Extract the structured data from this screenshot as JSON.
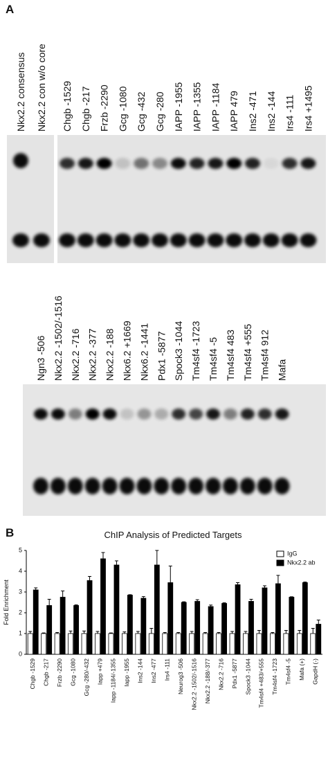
{
  "panel_a": {
    "label": "A",
    "gel_1_lanes": [
      "Nkx2.2 consensus",
      "Nkx2.2 con w/o core",
      "Chgb -1529",
      "Chgb -217",
      "Frzb -2290",
      "Gcg -1080",
      "Gcg -432",
      "Gcg -280",
      "IAPP -1955",
      "IAPP -1355",
      "IAPP -1184",
      "IAPP 479",
      "Ins2 -471",
      "Ins2 -144",
      "Irs4 -111",
      "Irs4 +1495"
    ],
    "gel_2_lanes": [
      "Ngn3 -506",
      "Nkx2.2 -1502/-1516",
      "Nkx2.2 -716",
      "Nkx2.2 -377",
      "Nkx2.2 -188",
      "Nkx6.2 +1669",
      "Nkx6.2 -1441",
      "Pdx1 -5877",
      "Spock3 -1044",
      "Tm4sf4 -1723",
      "Tm4sf4 -5",
      "Tm4sf4 483",
      "Tm4sf4 +555",
      "Tm4sf4 912",
      "Mafa"
    ]
  },
  "panel_b_label": "B",
  "chart_data": {
    "type": "bar",
    "title": "ChIP Analysis of Predicted Targets",
    "y_label": "Fold Enrichment",
    "categories": [
      "Chgb -1529",
      "Chgb -217",
      "Frzb -2290",
      "Gcg -1080",
      "Gcg -280/-432",
      "Iapp +479",
      "Iapp -1184/-1355",
      "Iapp -1955",
      "Ins2 -144",
      "Ins2 -477",
      "Irs4 -111",
      "Neurog3 -506",
      "Nkx2.2 -1502/-1516",
      "Nkx2.2 -188/-377",
      "Nkx2.2 -716",
      "Pdx1 -5877",
      "Spock3 -1044",
      "Tm4sf4 +483/+555",
      "Tm4sf4 -1723",
      "Tm4sf4 -5",
      "Mafa (+)",
      "GapdH (-)"
    ],
    "series": [
      {
        "name": "IgG",
        "color": "#ffffff",
        "values": [
          1,
          1,
          1,
          1,
          1,
          1,
          1,
          1,
          1,
          1,
          1,
          1,
          1,
          1,
          1,
          1,
          1,
          1,
          1,
          1,
          1,
          1
        ],
        "errors": [
          0.1,
          0.03,
          0.05,
          0.12,
          0.12,
          0.1,
          0.03,
          0.08,
          0.1,
          0.25,
          0.05,
          0.05,
          0.1,
          0.05,
          0.05,
          0.1,
          0.1,
          0.15,
          0.05,
          0.15,
          0.15,
          0.25
        ]
      },
      {
        "name": "Nkx2.2 ab",
        "color": "#000000",
        "values": [
          3.1,
          2.35,
          2.75,
          2.35,
          3.55,
          4.6,
          4.3,
          2.85,
          2.7,
          4.3,
          3.45,
          2.5,
          2.55,
          2.3,
          2.45,
          3.35,
          2.55,
          3.2,
          3.4,
          2.75,
          3.45,
          1.45
        ],
        "errors": [
          0.1,
          0.3,
          0.3,
          0.03,
          0.2,
          0.3,
          0.2,
          0.02,
          0.08,
          0.7,
          0.8,
          0.03,
          0.08,
          0.07,
          0.03,
          0.1,
          0.1,
          0.1,
          0.4,
          0.02,
          0.03,
          0.2
        ]
      }
    ],
    "ylim": [
      0,
      5
    ],
    "yticks": [
      0,
      1,
      2,
      3,
      4,
      5
    ],
    "legend": "top-right"
  }
}
